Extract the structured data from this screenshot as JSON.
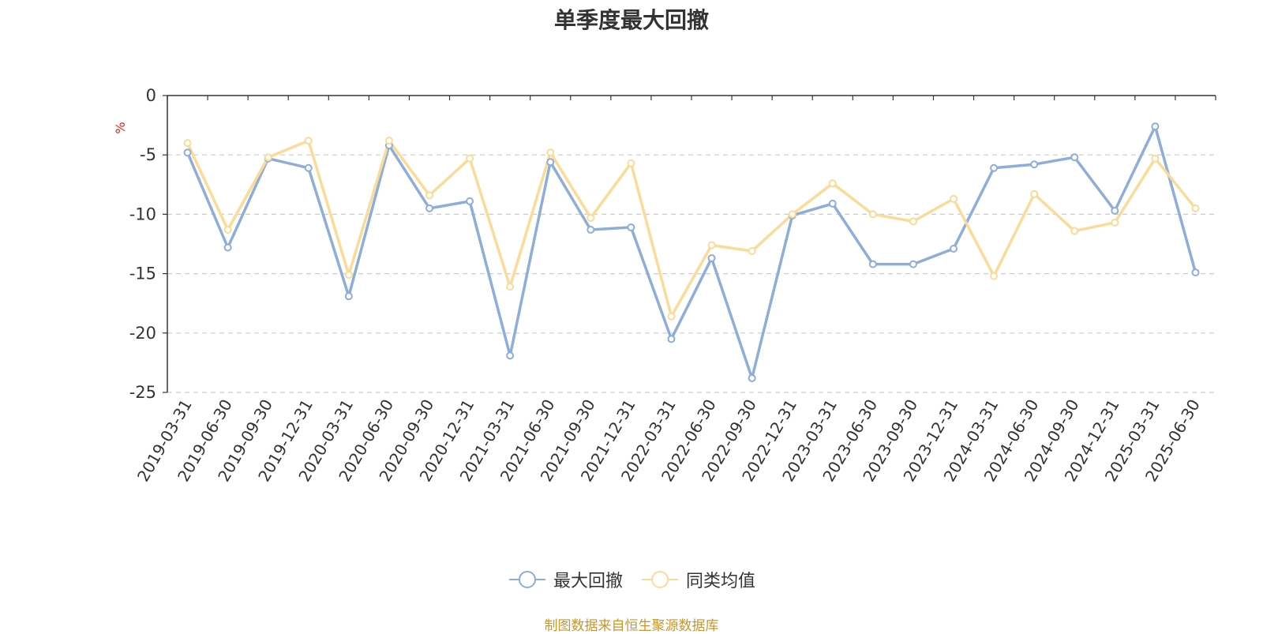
{
  "chart_data": {
    "type": "line",
    "title": "单季度最大回撤",
    "ylabel": "%",
    "ylim": [
      -25,
      0
    ],
    "yticks": [
      0,
      -5,
      -10,
      -15,
      -20,
      -25
    ],
    "grid": true,
    "legend_position": "bottom-center",
    "categories": [
      "2019-03-31",
      "2019-06-30",
      "2019-09-30",
      "2019-12-31",
      "2020-03-31",
      "2020-06-30",
      "2020-09-30",
      "2020-12-31",
      "2021-03-31",
      "2021-06-30",
      "2021-09-30",
      "2021-12-31",
      "2022-03-31",
      "2022-06-30",
      "2022-09-30",
      "2022-12-31",
      "2023-03-31",
      "2023-06-30",
      "2023-09-30",
      "2023-12-31",
      "2024-03-31",
      "2024-06-30",
      "2024-09-30",
      "2024-12-31",
      "2025-03-31",
      "2025-06-30"
    ],
    "series": [
      {
        "name": "最大回撤",
        "color": "#8eadd9",
        "values": [
          -4.8,
          -12.8,
          -5.3,
          -6.1,
          -16.9,
          -4.2,
          -9.5,
          -8.9,
          -21.9,
          -5.6,
          -11.3,
          -11.1,
          -20.5,
          -13.7,
          -23.8,
          -10.1,
          -9.1,
          -14.2,
          -14.2,
          -12.9,
          -6.1,
          -5.8,
          -5.2,
          -9.7,
          -2.6,
          -14.9
        ]
      },
      {
        "name": "同类均值",
        "color": "#fadb98",
        "values": [
          -4.0,
          -11.3,
          -5.2,
          -3.8,
          -15.1,
          -3.8,
          -8.4,
          -5.3,
          -16.1,
          -4.8,
          -10.3,
          -5.7,
          -18.6,
          -12.6,
          -13.1,
          -10.0,
          -7.4,
          -10.0,
          -10.6,
          -8.7,
          -15.2,
          -8.3,
          -11.4,
          -10.7,
          -5.3,
          -9.5
        ]
      }
    ]
  },
  "source_note": "制图数据来自恒生聚源数据库"
}
